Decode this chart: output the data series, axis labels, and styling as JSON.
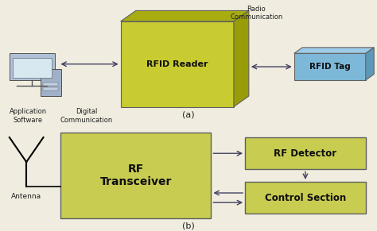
{
  "bg_color": "#f0ede0",
  "olive_dark": "#b8bc20",
  "olive_mid": "#c8cc30",
  "olive_light": "#d4d848",
  "olive_top": "#a8ac10",
  "olive_side": "#989c08",
  "blue_face": "#7eb8d8",
  "blue_top": "#9ecce8",
  "blue_side": "#5e98b8",
  "green_box": "#c8cc50",
  "box_border": "#606060",
  "arrow_color": "#404060",
  "text_color": "#101010",
  "label_color": "#202020",
  "top": {
    "label": "(a)",
    "reader_text": "RFID Reader",
    "tag_text": "RFID Tag",
    "radio_text": "Radio\nCommunication",
    "app_text": "Application\nSoftware",
    "dig_text": "Digital\nCommunication"
  },
  "bot": {
    "label": "(b)",
    "trans_text": "RF\nTransceiver",
    "det_text": "RF Detector",
    "ctrl_text": "Control Section",
    "ant_text": "Antenna"
  }
}
